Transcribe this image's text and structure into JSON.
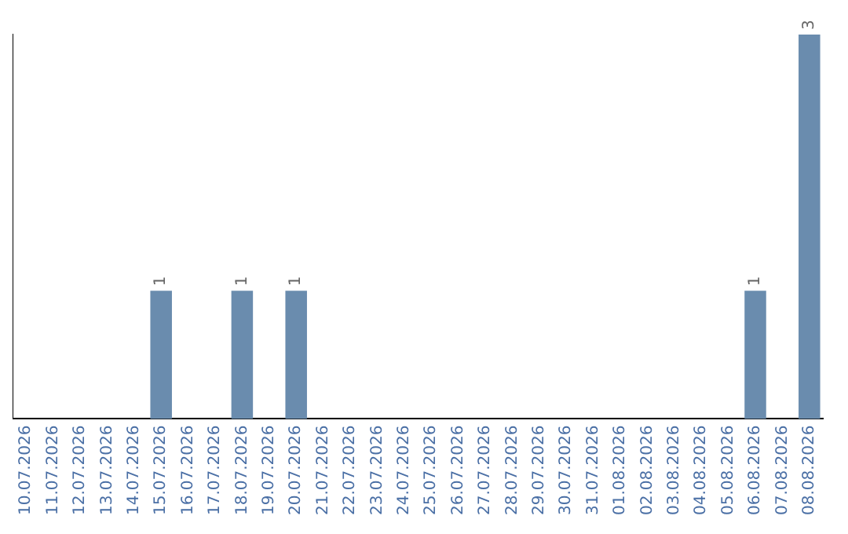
{
  "chart_data": {
    "type": "bar",
    "categories": [
      "10.07.2026",
      "11.07.2026",
      "12.07.2026",
      "13.07.2026",
      "14.07.2026",
      "15.07.2026",
      "16.07.2026",
      "17.07.2026",
      "18.07.2026",
      "19.07.2026",
      "20.07.2026",
      "21.07.2026",
      "22.07.2026",
      "23.07.2026",
      "24.07.2026",
      "25.07.2026",
      "26.07.2026",
      "27.07.2026",
      "28.07.2026",
      "29.07.2026",
      "30.07.2026",
      "31.07.2026",
      "01.08.2026",
      "02.08.2026",
      "03.08.2026",
      "04.08.2026",
      "05.08.2026",
      "06.08.2026",
      "07.08.2026",
      "08.08.2026"
    ],
    "values": [
      0,
      0,
      0,
      0,
      0,
      1,
      0,
      0,
      1,
      0,
      1,
      0,
      0,
      0,
      0,
      0,
      0,
      0,
      0,
      0,
      0,
      0,
      0,
      0,
      0,
      0,
      0,
      1,
      0,
      3
    ],
    "value_labels": [
      null,
      null,
      null,
      null,
      null,
      "1",
      null,
      null,
      "1",
      null,
      "1",
      null,
      null,
      null,
      null,
      null,
      null,
      null,
      null,
      null,
      null,
      null,
      null,
      null,
      null,
      null,
      null,
      "1",
      null,
      "3"
    ],
    "color": "#6a8cae",
    "grid": false,
    "legend": false,
    "tick_labels": "x"
  }
}
